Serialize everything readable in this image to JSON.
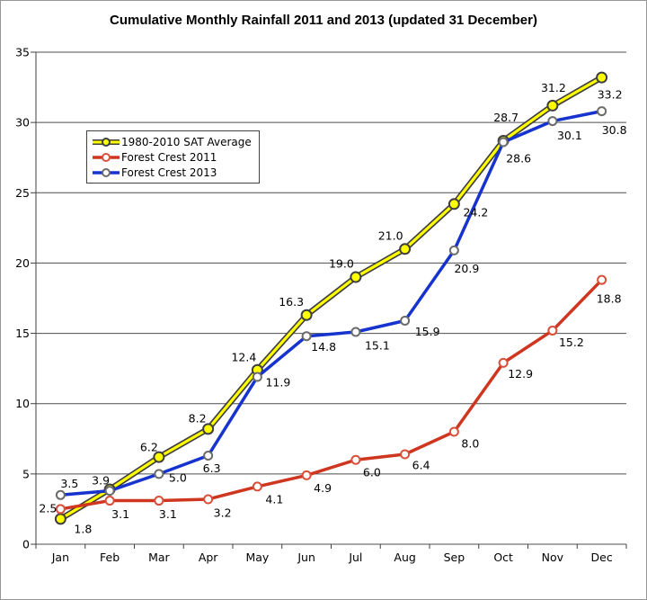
{
  "title": "Cumulative Monthly Rainfall 2011 and 2013 (updated 31 December)",
  "colors": {
    "grid": "#4d4d4d",
    "axis": "#404040",
    "text": "#000000",
    "frame_border": "#969696",
    "background": "#ffffff",
    "sat_yellow": "#ffff00",
    "rain_red": "#cf3620",
    "rain_blue": "#1634cd"
  },
  "chart_data": {
    "type": "line",
    "title": "Cumulative Monthly Rainfall 2011 and 2013 (updated 31 December)",
    "categories": [
      "Jan",
      "Feb",
      "Mar",
      "Apr",
      "May",
      "Jun",
      "Jul",
      "Aug",
      "Sep",
      "Oct",
      "Nov",
      "Dec"
    ],
    "xlabel": "",
    "ylabel": "",
    "ylim": [
      0,
      35
    ],
    "ytick_step": 5,
    "ytick_labels": [
      "0",
      "5",
      "10",
      "15",
      "20",
      "25",
      "30",
      "35"
    ],
    "grid": true,
    "legend_position": "upper-left-inside",
    "series": [
      {
        "name": "1980-2010 SAT Average",
        "line_color": "#ffff00",
        "line_edge_color": "#3f3f3f",
        "marker_fill": "#ffff00",
        "marker_edge": "#3f3f3f",
        "values": [
          1.8,
          3.9,
          6.2,
          8.2,
          12.4,
          16.3,
          19.0,
          21.0,
          24.2,
          28.7,
          31.2,
          33.2
        ],
        "point_labels": [
          "1.8",
          "3.9",
          "6.2",
          "8.2",
          "12.4",
          "16.3",
          "19.0",
          "21.0",
          "24.2",
          "28.7",
          "31.2",
          "33.2"
        ],
        "label_offsets": [
          [
            25,
            11
          ],
          [
            -10,
            -10
          ],
          [
            -11,
            -11
          ],
          [
            -12,
            -12
          ],
          [
            -15,
            -14
          ],
          [
            -17,
            -15
          ],
          [
            -16,
            -15
          ],
          [
            -16,
            -15
          ],
          [
            24,
            9
          ],
          [
            3,
            -26
          ],
          [
            1,
            -20
          ],
          [
            9,
            19
          ]
        ]
      },
      {
        "name": "Forest Crest 2011",
        "line_color": "#cf3620",
        "line_edge_color": null,
        "marker_fill": "#ffffff",
        "marker_edge": "#d8503a",
        "values": [
          2.5,
          3.1,
          3.1,
          3.2,
          4.1,
          4.9,
          6.0,
          6.4,
          8.0,
          12.9,
          15.2,
          18.8
        ],
        "point_labels": [
          "2.5",
          "3.1",
          "3.1",
          "3.2",
          "4.1",
          "4.9",
          "6.0",
          "6.4",
          "8.0",
          "12.9",
          "15.2",
          "18.8"
        ],
        "label_offsets": [
          [
            -14,
            -1
          ],
          [
            12,
            15
          ],
          [
            10,
            15
          ],
          [
            16,
            15
          ],
          [
            19,
            14
          ],
          [
            18,
            14
          ],
          [
            18,
            14
          ],
          [
            18,
            12
          ],
          [
            18,
            13
          ],
          [
            19,
            12
          ],
          [
            21,
            13
          ],
          [
            8,
            21
          ]
        ]
      },
      {
        "name": "Forest Crest 2013",
        "line_color": "#1634cd",
        "line_edge_color": null,
        "marker_fill": "#ffffff",
        "marker_edge": "#6b6b6b",
        "values": [
          3.5,
          3.8,
          5.0,
          6.3,
          11.9,
          14.8,
          15.1,
          15.9,
          20.9,
          28.6,
          30.1,
          30.8
        ],
        "point_labels": [
          "3.5",
          "",
          "5.0",
          "6.3",
          "11.9",
          "14.8",
          "15.1",
          "15.9",
          "20.9",
          "28.6",
          "30.1",
          "30.8"
        ],
        "label_offsets": [
          [
            10,
            -13
          ],
          [
            0,
            0
          ],
          [
            21,
            4
          ],
          [
            4,
            14
          ],
          [
            23,
            6
          ],
          [
            19,
            12
          ],
          [
            24,
            15
          ],
          [
            25,
            12
          ],
          [
            14,
            20
          ],
          [
            17,
            18
          ],
          [
            19,
            16
          ],
          [
            14,
            21
          ]
        ]
      }
    ]
  }
}
